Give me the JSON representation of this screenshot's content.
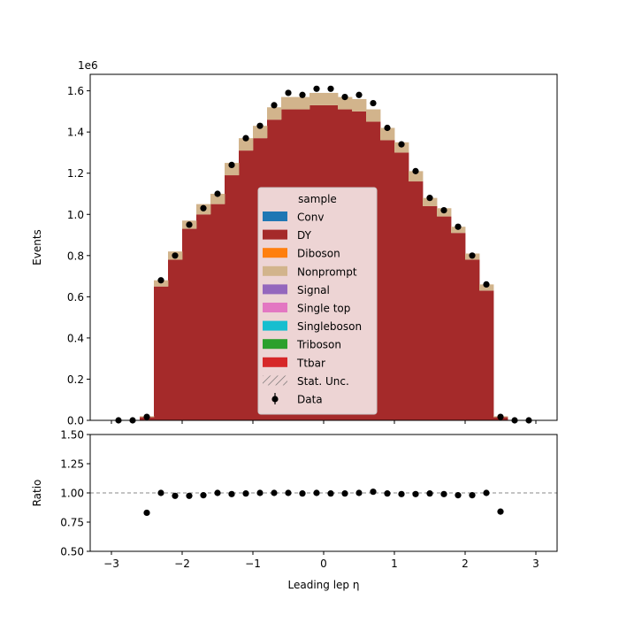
{
  "chart_data": [
    {
      "type": "bar",
      "panel": "main",
      "ylabel": "Events",
      "y_scale_label": "1e6",
      "xlim": [
        -3.3,
        3.3
      ],
      "ylim": [
        0,
        1.68
      ],
      "yticks": [
        0.0,
        0.2,
        0.4,
        0.6,
        0.8,
        1.0,
        1.2,
        1.4,
        1.6
      ],
      "ytick_labels": [
        "0.0",
        "0.2",
        "0.4",
        "0.6",
        "0.8",
        "1.0",
        "1.2",
        "1.4",
        "1.6"
      ],
      "bin_edges": [
        -3.0,
        -2.8,
        -2.6,
        -2.4,
        -2.2,
        -2.0,
        -1.8,
        -1.6,
        -1.4,
        -1.2,
        -1.0,
        -0.8,
        -0.6,
        -0.4,
        -0.2,
        0.0,
        0.2,
        0.4,
        0.6,
        0.8,
        1.0,
        1.2,
        1.4,
        1.6,
        1.8,
        2.0,
        2.2,
        2.4,
        2.6,
        2.8,
        3.0
      ],
      "stack": [
        {
          "name": "DY",
          "color": "#a52a2a",
          "values": [
            0,
            0,
            0.015,
            0.65,
            0.78,
            0.93,
            1.0,
            1.05,
            1.19,
            1.31,
            1.37,
            1.46,
            1.51,
            1.51,
            1.53,
            1.53,
            1.51,
            1.5,
            1.45,
            1.36,
            1.3,
            1.16,
            1.04,
            0.99,
            0.91,
            0.78,
            0.63,
            0.015,
            0,
            0
          ]
        },
        {
          "name": "Nonprompt",
          "color": "#d2b48c",
          "values": [
            0,
            0,
            0.005,
            0.03,
            0.04,
            0.04,
            0.05,
            0.05,
            0.06,
            0.06,
            0.06,
            0.06,
            0.06,
            0.06,
            0.06,
            0.06,
            0.06,
            0.06,
            0.06,
            0.06,
            0.05,
            0.05,
            0.04,
            0.04,
            0.03,
            0.03,
            0.03,
            0.005,
            0,
            0
          ]
        }
      ],
      "data_points": {
        "name": "Data",
        "x": [
          -2.9,
          -2.7,
          -2.5,
          -2.3,
          -2.1,
          -1.9,
          -1.7,
          -1.5,
          -1.3,
          -1.1,
          -0.9,
          -0.7,
          -0.5,
          -0.3,
          -0.1,
          0.1,
          0.3,
          0.5,
          0.7,
          0.9,
          1.1,
          1.3,
          1.5,
          1.7,
          1.9,
          2.1,
          2.3,
          2.5,
          2.7,
          2.9
        ],
        "y": [
          0,
          0,
          0.017,
          0.68,
          0.8,
          0.95,
          1.03,
          1.1,
          1.24,
          1.37,
          1.43,
          1.53,
          1.59,
          1.58,
          1.61,
          1.61,
          1.57,
          1.58,
          1.54,
          1.42,
          1.34,
          1.21,
          1.08,
          1.02,
          0.94,
          0.8,
          0.66,
          0.017,
          0,
          0
        ]
      },
      "legend": {
        "title": "sample",
        "location": "center",
        "entries": [
          {
            "label": "Conv",
            "color": "#1f77b4",
            "kind": "patch"
          },
          {
            "label": "DY",
            "color": "#a52a2a",
            "kind": "patch"
          },
          {
            "label": "Diboson",
            "color": "#ff7f0e",
            "kind": "patch"
          },
          {
            "label": "Nonprompt",
            "color": "#d2b48c",
            "kind": "patch"
          },
          {
            "label": "Signal",
            "color": "#9467bd",
            "kind": "patch"
          },
          {
            "label": "Single top",
            "color": "#e377c2",
            "kind": "patch"
          },
          {
            "label": "Singleboson",
            "color": "#17becf",
            "kind": "patch"
          },
          {
            "label": "Triboson",
            "color": "#2ca02c",
            "kind": "patch"
          },
          {
            "label": "Ttbar",
            "color": "#d62728",
            "kind": "patch"
          },
          {
            "label": "Stat. Unc.",
            "color": "#666666",
            "kind": "hatch"
          },
          {
            "label": "Data",
            "color": "#000000",
            "kind": "errorbar"
          }
        ]
      }
    },
    {
      "type": "scatter",
      "panel": "ratio",
      "ylabel": "Ratio",
      "xlabel": "Leading lep η",
      "xlim": [
        -3.3,
        3.3
      ],
      "ylim": [
        0.5,
        1.5
      ],
      "yticks": [
        0.5,
        0.75,
        1.0,
        1.25,
        1.5
      ],
      "ytick_labels": [
        "0.50",
        "0.75",
        "1.00",
        "1.25",
        "1.50"
      ],
      "xticks": [
        -3,
        -2,
        -1,
        0,
        1,
        2,
        3
      ],
      "xtick_labels": [
        "−3",
        "−2",
        "−1",
        "0",
        "1",
        "2",
        "3"
      ],
      "reference_line": 1.0,
      "x": [
        -2.5,
        -2.3,
        -2.1,
        -1.9,
        -1.7,
        -1.5,
        -1.3,
        -1.1,
        -0.9,
        -0.7,
        -0.5,
        -0.3,
        -0.1,
        0.1,
        0.3,
        0.5,
        0.7,
        0.9,
        1.1,
        1.3,
        1.5,
        1.7,
        1.9,
        2.1,
        2.3,
        2.5
      ],
      "y": [
        0.83,
        1.0,
        0.975,
        0.975,
        0.98,
        1.0,
        0.99,
        0.995,
        1.0,
        1.0,
        1.0,
        0.995,
        1.0,
        0.995,
        0.995,
        1.0,
        1.01,
        0.995,
        0.99,
        0.99,
        0.995,
        0.99,
        0.98,
        0.98,
        1.0,
        0.84
      ]
    }
  ]
}
